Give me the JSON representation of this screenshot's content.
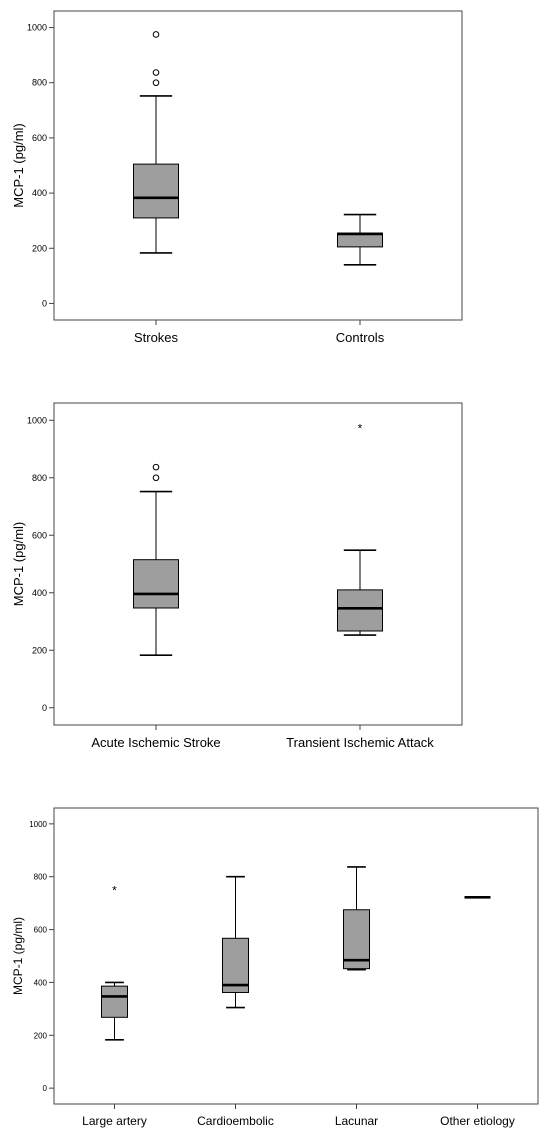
{
  "chart_data": [
    {
      "type": "boxplot",
      "title": "",
      "ylabel": "MCP-1 (pg/ml)",
      "xlabel": "",
      "ylim": [
        -60,
        1060
      ],
      "yticks": [
        0,
        200,
        400,
        600,
        800,
        1000
      ],
      "categories": [
        "Strokes",
        "Controls"
      ],
      "boxes": [
        {
          "category": "Strokes",
          "whisker_low": 183,
          "q1": 310,
          "median": 383,
          "q3": 505,
          "whisker_high": 752,
          "outliers": [
            {
              "value": 800,
              "marker": "o"
            },
            {
              "value": 837,
              "marker": "o"
            },
            {
              "value": 975,
              "marker": "o"
            }
          ]
        },
        {
          "category": "Controls",
          "whisker_low": 140,
          "q1": 205,
          "median": 252,
          "q3": 255,
          "whisker_high": 322,
          "outliers": []
        }
      ]
    },
    {
      "type": "boxplot",
      "title": "",
      "ylabel": "MCP-1 (pg/ml)",
      "xlabel": "",
      "ylim": [
        -60,
        1060
      ],
      "yticks": [
        0,
        200,
        400,
        600,
        800,
        1000
      ],
      "categories": [
        "Acute Ischemic Stroke",
        "Transient Ischemic Attack"
      ],
      "boxes": [
        {
          "category": "Acute Ischemic Stroke",
          "whisker_low": 183,
          "q1": 347,
          "median": 396,
          "q3": 515,
          "whisker_high": 752,
          "outliers": [
            {
              "value": 800,
              "marker": "o"
            },
            {
              "value": 837,
              "marker": "o"
            }
          ]
        },
        {
          "category": "Transient Ischemic Attack",
          "whisker_low": 253,
          "q1": 267,
          "median": 346,
          "q3": 410,
          "whisker_high": 548,
          "outliers": [
            {
              "value": 975,
              "marker": "*"
            }
          ]
        }
      ]
    },
    {
      "type": "boxplot",
      "title": "",
      "ylabel": "MCP-1 (pg/ml)",
      "xlabel": "",
      "ylim": [
        -60,
        1060
      ],
      "yticks": [
        0,
        200,
        400,
        600,
        800,
        1000
      ],
      "categories": [
        "Large artery",
        "Cardioembolic",
        "Lacunar",
        "Other etiology"
      ],
      "boxes": [
        {
          "category": "Large artery",
          "whisker_low": 183,
          "q1": 268,
          "median": 347,
          "q3": 386,
          "whisker_high": 400,
          "outliers": [
            {
              "value": 752,
              "marker": "*"
            }
          ]
        },
        {
          "category": "Cardioembolic",
          "whisker_low": 305,
          "q1": 362,
          "median": 390,
          "q3": 567,
          "whisker_high": 800,
          "outliers": []
        },
        {
          "category": "Lacunar",
          "whisker_low": 448,
          "q1": 452,
          "median": 484,
          "q3": 675,
          "whisker_high": 837,
          "outliers": []
        },
        {
          "category": "Other etiology",
          "whisker_low": 722,
          "q1": 722,
          "median": 722,
          "q3": 722,
          "whisker_high": 722,
          "outliers": []
        }
      ]
    }
  ],
  "colors": {
    "box_fill": "#9e9e9e",
    "stroke": "#000000",
    "frame": "#444444",
    "background": "#ffffff"
  }
}
